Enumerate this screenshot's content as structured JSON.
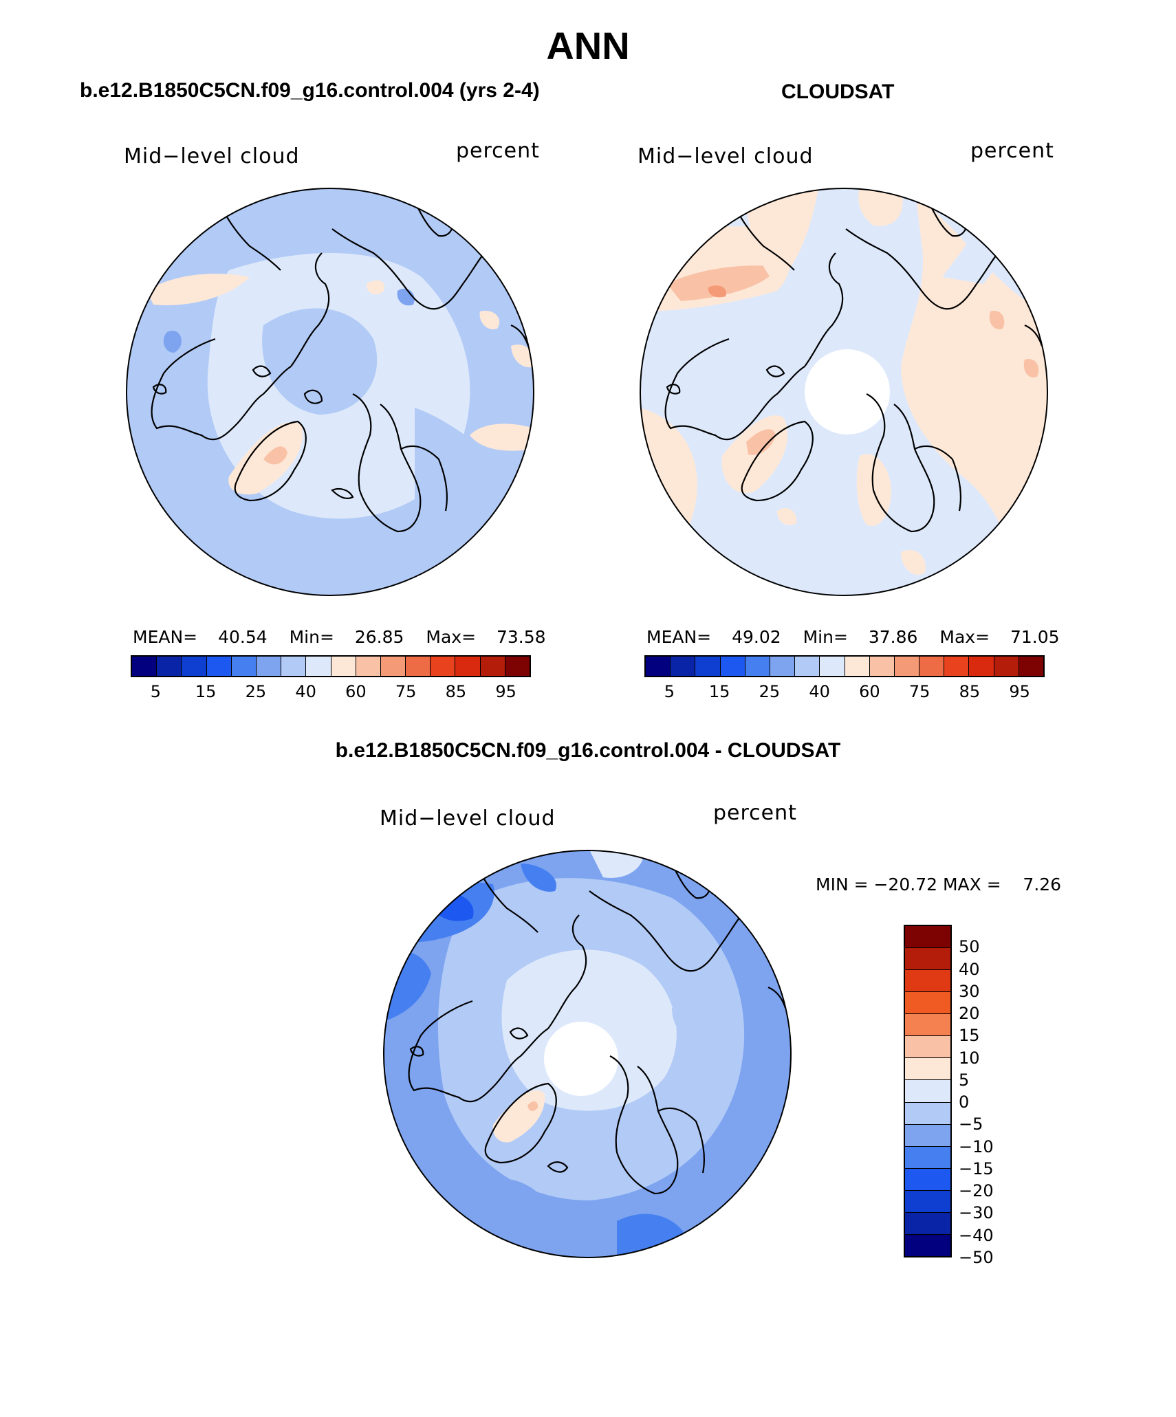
{
  "title": "ANN",
  "panels": {
    "model": {
      "title": "b.e12.B1850C5CN.f09_g16.control.004 (yrs 2-4)",
      "variable": "Mid−level cloud",
      "units": "percent",
      "mean_label": "MEAN=",
      "mean": "40.54",
      "min_label": "Min=",
      "min": "26.85",
      "max_label": "Max=",
      "max": "73.58"
    },
    "obs": {
      "title": "CLOUDSAT",
      "variable": "Mid−level cloud",
      "units": "percent",
      "mean_label": "MEAN=",
      "mean": "49.02",
      "min_label": "Min=",
      "min": "37.86",
      "max_label": "Max=",
      "max": "71.05"
    },
    "diff": {
      "title": "b.e12.B1850C5CN.f09_g16.control.004 - CLOUDSAT",
      "variable": "Mid−level cloud",
      "units": "percent",
      "minmax": "MIN = −20.72 MAX =    7.26"
    }
  },
  "colorbar_abs": {
    "colors": [
      "#03007f",
      "#0a24a8",
      "#0f3fd0",
      "#1d58f0",
      "#4680f0",
      "#7ea4f0",
      "#b2caf6",
      "#dde9fb",
      "#fde8d8",
      "#f9c2a6",
      "#f49a77",
      "#ee6c45",
      "#e8421e",
      "#d9290f",
      "#b41d0a",
      "#7d0303"
    ],
    "ticks": [
      "5",
      "15",
      "25",
      "40",
      "60",
      "75",
      "85",
      "95"
    ]
  },
  "colorbar_diff": {
    "colors": [
      "#7d0303",
      "#b41d0a",
      "#e03a14",
      "#f05a23",
      "#f58050",
      "#f9c2a6",
      "#fde8d8",
      "#dde9fb",
      "#b2caf6",
      "#7ea4f0",
      "#4680f0",
      "#1d58f0",
      "#0f3fd0",
      "#0a24a8",
      "#03007f"
    ],
    "ticks": [
      "50",
      "40",
      "30",
      "20",
      "15",
      "10",
      "5",
      "0",
      "−5",
      "−10",
      "−15",
      "−20",
      "−30",
      "−40",
      "−50"
    ]
  }
}
